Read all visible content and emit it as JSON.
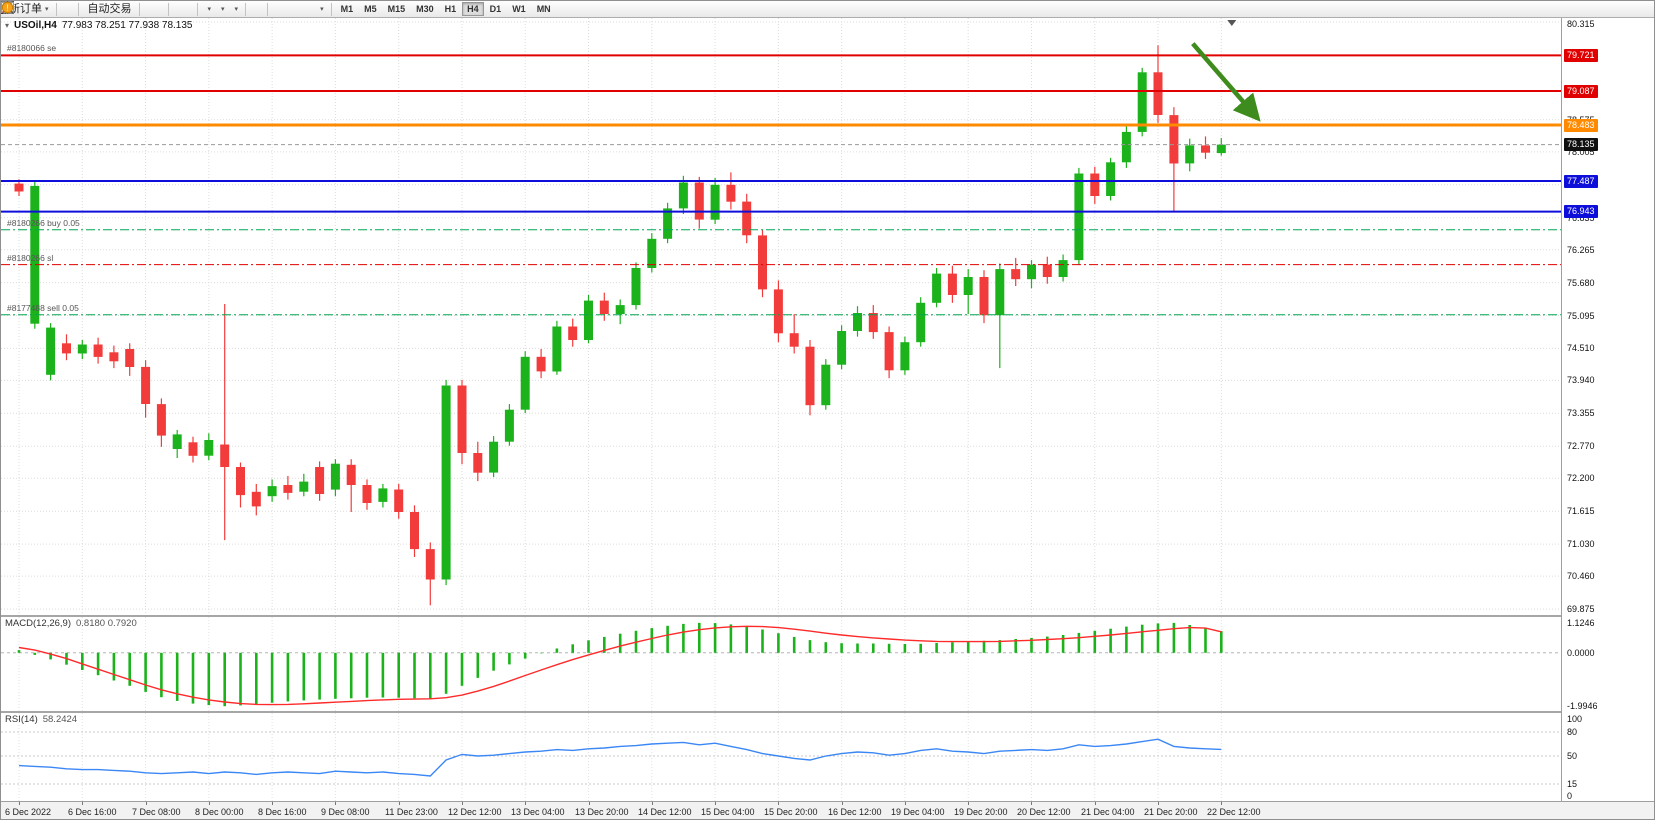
{
  "toolbar": {
    "groups": [
      [
        {
          "name": "new-order-button",
          "icon": "doc-plus",
          "label": "新订单",
          "dd": true
        }
      ],
      [
        {
          "name": "charts-button",
          "icon": "candles-mini"
        },
        {
          "name": "market-watch-button",
          "icon": "grid-blue"
        }
      ],
      [
        {
          "name": "auto-trading-button",
          "icon": "play",
          "label": "自动交易"
        }
      ],
      [
        {
          "name": "chart-bars-button",
          "icon": "bars"
        },
        {
          "name": "chart-candles-button",
          "icon": "candle"
        },
        {
          "name": "chart-line-button",
          "icon": "linechart"
        }
      ],
      [
        {
          "name": "zoom-in-button",
          "icon": "zoom-in"
        },
        {
          "name": "zoom-out-button",
          "icon": "zoom-out"
        },
        {
          "name": "tile-windows-button",
          "icon": "tile"
        }
      ],
      [
        {
          "name": "indicators-button",
          "icon": "plus-green",
          "dd": true
        },
        {
          "name": "periods-button",
          "icon": "clock",
          "dd": true
        },
        {
          "name": "templates-button",
          "icon": "template",
          "dd": true
        }
      ],
      [
        {
          "name": "cursor-button",
          "icon": "cursor"
        },
        {
          "name": "crosshair-button",
          "icon": "crosshair"
        }
      ],
      [
        {
          "name": "horizontal-line-button",
          "icon": "hline"
        },
        {
          "name": "trendline-button",
          "icon": "trendline"
        },
        {
          "name": "channel-button",
          "icon": "channel"
        },
        {
          "name": "fibonacci-button",
          "icon": "fibonacci"
        },
        {
          "name": "text-button",
          "icon": "text-a"
        },
        {
          "name": "label-button",
          "icon": "text-t"
        },
        {
          "name": "arrows-button",
          "icon": "arrow-tool",
          "dd": true
        }
      ]
    ],
    "right": [
      {
        "name": "search-button",
        "icon": "magnifier"
      },
      {
        "name": "alerts-button",
        "icon": "orange-circle"
      }
    ],
    "timeframes": [
      "M1",
      "M5",
      "M15",
      "M30",
      "H1",
      "H4",
      "D1",
      "W1",
      "MN"
    ],
    "active_timeframe": "H4"
  },
  "chart": {
    "symbol_period": "USOil,H4",
    "ohlc_text": "77.983 78.251 77.938 78.135",
    "macd_label": "MACD(12,26,9)",
    "macd_values": "0.8180 0.7920",
    "rsi_label": "RSI(14)",
    "rsi_value": "58.2424"
  },
  "chart_data": [
    {
      "type": "candlestick",
      "title": "USOil,H4",
      "last_ohlc": {
        "open": 77.983,
        "high": 78.251,
        "low": 77.938,
        "close": 78.135
      },
      "ylim": [
        69.875,
        80.315
      ],
      "up_color": "#1cb21c",
      "down_color": "#f23c3c",
      "time_labels": [
        "6 Dec 2022",
        "6 Dec 16:00",
        "7 Dec 08:00",
        "8 Dec 00:00",
        "8 Dec 16:00",
        "9 Dec 08:00",
        "11 Dec 23:00",
        "12 Dec 12:00",
        "13 Dec 04:00",
        "13 Dec 20:00",
        "14 Dec 12:00",
        "15 Dec 04:00",
        "15 Dec 20:00",
        "16 Dec 12:00",
        "19 Dec 04:00",
        "19 Dec 20:00",
        "20 Dec 12:00",
        "21 Dec 04:00",
        "21 Dec 20:00",
        "22 Dec 12:00"
      ],
      "time_label_bar_index": [
        0,
        4,
        8,
        12,
        16,
        20,
        24,
        28,
        32,
        36,
        40,
        44,
        48,
        52,
        56,
        60,
        64,
        68,
        72,
        76
      ],
      "candles": [
        [
          77.44,
          77.52,
          77.22,
          77.3
        ],
        [
          74.95,
          77.48,
          74.86,
          77.4
        ],
        [
          74.04,
          74.96,
          73.94,
          74.88
        ],
        [
          74.6,
          74.76,
          74.3,
          74.42
        ],
        [
          74.42,
          74.66,
          74.32,
          74.58
        ],
        [
          74.58,
          74.7,
          74.24,
          74.36
        ],
        [
          74.44,
          74.56,
          74.16,
          74.28
        ],
        [
          74.5,
          74.6,
          74.02,
          74.18
        ],
        [
          74.18,
          74.3,
          73.28,
          73.52
        ],
        [
          73.52,
          73.62,
          72.76,
          72.96
        ],
        [
          72.72,
          73.06,
          72.56,
          72.98
        ],
        [
          72.84,
          72.94,
          72.48,
          72.6
        ],
        [
          72.6,
          73.0,
          72.52,
          72.88
        ],
        [
          72.8,
          75.3,
          71.1,
          72.4
        ],
        [
          72.4,
          72.48,
          71.68,
          71.9
        ],
        [
          71.96,
          72.1,
          71.54,
          71.7
        ],
        [
          71.88,
          72.18,
          71.78,
          72.06
        ],
        [
          72.08,
          72.24,
          71.82,
          71.94
        ],
        [
          71.96,
          72.28,
          71.88,
          72.14
        ],
        [
          72.4,
          72.5,
          71.8,
          71.92
        ],
        [
          72.0,
          72.54,
          71.88,
          72.46
        ],
        [
          72.44,
          72.54,
          71.6,
          72.08
        ],
        [
          72.08,
          72.18,
          71.64,
          71.76
        ],
        [
          71.78,
          72.1,
          71.68,
          72.02
        ],
        [
          72.0,
          72.1,
          71.48,
          71.6
        ],
        [
          71.6,
          71.72,
          70.8,
          70.94
        ],
        [
          70.94,
          71.06,
          69.94,
          70.4
        ],
        [
          70.4,
          73.95,
          70.3,
          73.85
        ],
        [
          73.85,
          73.95,
          72.45,
          72.65
        ],
        [
          72.65,
          72.85,
          72.15,
          72.3
        ],
        [
          72.3,
          72.95,
          72.22,
          72.85
        ],
        [
          72.85,
          73.52,
          72.78,
          73.42
        ],
        [
          73.42,
          74.46,
          73.36,
          74.36
        ],
        [
          74.36,
          74.5,
          73.98,
          74.1
        ],
        [
          74.1,
          75.0,
          74.04,
          74.9
        ],
        [
          74.9,
          75.04,
          74.54,
          74.66
        ],
        [
          74.66,
          75.46,
          74.6,
          75.36
        ],
        [
          75.36,
          75.5,
          75.0,
          75.12
        ],
        [
          75.12,
          75.38,
          74.94,
          75.28
        ],
        [
          75.28,
          76.04,
          75.2,
          75.94
        ],
        [
          75.94,
          76.56,
          75.86,
          76.46
        ],
        [
          76.46,
          77.1,
          76.38,
          77.0
        ],
        [
          77.0,
          77.58,
          76.9,
          77.46
        ],
        [
          77.46,
          77.56,
          76.64,
          76.8
        ],
        [
          76.8,
          77.54,
          76.72,
          77.42
        ],
        [
          77.42,
          77.64,
          76.98,
          77.12
        ],
        [
          77.12,
          77.26,
          76.38,
          76.52
        ],
        [
          76.52,
          76.62,
          75.42,
          75.56
        ],
        [
          75.56,
          75.72,
          74.62,
          74.78
        ],
        [
          74.78,
          75.12,
          74.42,
          74.54
        ],
        [
          74.54,
          74.66,
          73.32,
          73.5
        ],
        [
          73.5,
          74.32,
          73.42,
          74.22
        ],
        [
          74.22,
          74.92,
          74.14,
          74.82
        ],
        [
          74.82,
          75.26,
          74.72,
          75.14
        ],
        [
          75.14,
          75.28,
          74.68,
          74.8
        ],
        [
          74.8,
          74.9,
          73.98,
          74.12
        ],
        [
          74.12,
          74.72,
          74.04,
          74.62
        ],
        [
          74.62,
          75.42,
          74.54,
          75.32
        ],
        [
          75.32,
          75.94,
          75.24,
          75.84
        ],
        [
          75.84,
          75.98,
          75.32,
          75.46
        ],
        [
          75.46,
          75.92,
          75.12,
          75.78
        ],
        [
          75.78,
          75.9,
          74.96,
          75.1
        ],
        [
          75.1,
          76.02,
          74.16,
          75.92
        ],
        [
          75.92,
          76.12,
          75.62,
          75.74
        ],
        [
          75.74,
          76.08,
          75.58,
          76.0
        ],
        [
          76.0,
          76.14,
          75.66,
          75.78
        ],
        [
          75.78,
          76.18,
          75.7,
          76.08
        ],
        [
          76.08,
          77.72,
          76.0,
          77.62
        ],
        [
          77.62,
          77.74,
          77.08,
          77.22
        ],
        [
          77.22,
          77.9,
          77.14,
          77.82
        ],
        [
          77.82,
          78.46,
          77.72,
          78.36
        ],
        [
          78.36,
          79.5,
          78.28,
          79.42
        ],
        [
          79.42,
          79.9,
          78.52,
          78.66
        ],
        [
          78.66,
          78.8,
          76.94,
          77.8
        ],
        [
          77.8,
          78.24,
          77.66,
          78.12
        ],
        [
          78.12,
          78.28,
          77.88,
          77.99
        ],
        [
          77.983,
          78.251,
          77.938,
          78.135
        ]
      ],
      "price_axis_labels": [
        80.315,
        78.575,
        78.005,
        77.42,
        76.835,
        76.265,
        75.68,
        75.095,
        74.51,
        73.94,
        73.355,
        72.77,
        72.2,
        71.615,
        71.03,
        70.46,
        69.875
      ],
      "price_badges": [
        {
          "label": "79.721",
          "price": 79.721,
          "bg": "#e00000"
        },
        {
          "label": "79.087",
          "price": 79.087,
          "bg": "#e00000"
        },
        {
          "label": "78.483",
          "price": 78.483,
          "bg": "#ff8a00"
        },
        {
          "label": "78.135",
          "price": 78.135,
          "bg": "#101010"
        },
        {
          "label": "77.487",
          "price": 77.487,
          "bg": "#0e0edb"
        },
        {
          "label": "76.943",
          "price": 76.943,
          "bg": "#0e0edb"
        }
      ],
      "level_lines": [
        {
          "price": 79.721,
          "color": "#e00000",
          "width": 2
        },
        {
          "price": 79.087,
          "color": "#e00000",
          "width": 2
        },
        {
          "price": 78.483,
          "color": "#ff8a00",
          "width": 3
        },
        {
          "price": 77.487,
          "color": "#0e0edb",
          "width": 2
        },
        {
          "price": 76.943,
          "color": "#0e0edb",
          "width": 2
        }
      ],
      "order_lines": [
        {
          "price": 76.62,
          "color": "#00a651"
        },
        {
          "price": 76.0,
          "color": "#e00000"
        },
        {
          "price": 75.11,
          "color": "#00a651"
        }
      ],
      "order_labels": [
        {
          "price": 79.721,
          "text": "#8180066 se"
        },
        {
          "price": 76.62,
          "text": "#8180266 buy 0.05"
        },
        {
          "price": 76.0,
          "text": "#8180266 sl"
        },
        {
          "price": 75.11,
          "text": "#8177488 sell 0.05"
        }
      ],
      "last_price": 78.135,
      "annotation_arrow": {
        "from_bar": 74.2,
        "from_price": 79.93,
        "to_bar": 78.3,
        "to_price": 78.6,
        "color": "#3f8c1e"
      }
    },
    {
      "type": "bar",
      "name": "MACD(12,26,9)",
      "values_label": "0.8180 0.7920",
      "ylim": [
        -2.05,
        1.2
      ],
      "hist_color": "#1cb21c",
      "signal_color": "#ff2a2a",
      "axis": [
        {
          "v": 1.1246,
          "t": "1.1246"
        },
        {
          "v": 0,
          "t": "0.0000"
        },
        {
          "v": -1.9946,
          "t": "-1.9946"
        }
      ],
      "histogram": [
        0.1,
        -0.08,
        -0.25,
        -0.45,
        -0.65,
        -0.85,
        -1.05,
        -1.25,
        -1.48,
        -1.68,
        -1.82,
        -1.92,
        -1.98,
        -2.02,
        -1.99,
        -1.94,
        -1.89,
        -1.84,
        -1.8,
        -1.77,
        -1.74,
        -1.72,
        -1.7,
        -1.69,
        -1.7,
        -1.72,
        -1.74,
        -1.55,
        -1.25,
        -0.95,
        -0.68,
        -0.44,
        -0.22,
        -0.02,
        0.16,
        0.32,
        0.47,
        0.6,
        0.72,
        0.83,
        0.93,
        1.02,
        1.09,
        1.13,
        1.12,
        1.07,
        0.99,
        0.88,
        0.74,
        0.6,
        0.48,
        0.4,
        0.36,
        0.35,
        0.35,
        0.34,
        0.33,
        0.34,
        0.37,
        0.4,
        0.43,
        0.45,
        0.48,
        0.52,
        0.56,
        0.61,
        0.67,
        0.75,
        0.83,
        0.91,
        0.99,
        1.06,
        1.11,
        1.13,
        1.05,
        0.93,
        0.818
      ],
      "signal": [
        0.2,
        0.1,
        -0.05,
        -0.22,
        -0.42,
        -0.62,
        -0.82,
        -1.02,
        -1.22,
        -1.4,
        -1.55,
        -1.68,
        -1.78,
        -1.86,
        -1.92,
        -1.95,
        -1.96,
        -1.95,
        -1.93,
        -1.9,
        -1.87,
        -1.84,
        -1.81,
        -1.78,
        -1.76,
        -1.75,
        -1.74,
        -1.7,
        -1.6,
        -1.45,
        -1.27,
        -1.07,
        -0.86,
        -0.65,
        -0.45,
        -0.26,
        -0.08,
        0.09,
        0.25,
        0.4,
        0.54,
        0.67,
        0.78,
        0.87,
        0.94,
        0.98,
        1.0,
        0.99,
        0.95,
        0.89,
        0.82,
        0.74,
        0.67,
        0.61,
        0.56,
        0.52,
        0.48,
        0.45,
        0.43,
        0.42,
        0.42,
        0.42,
        0.43,
        0.45,
        0.47,
        0.5,
        0.53,
        0.57,
        0.62,
        0.67,
        0.73,
        0.79,
        0.85,
        0.91,
        0.95,
        0.93,
        0.792
      ]
    },
    {
      "type": "line",
      "name": "RSI(14)",
      "value_label": "58.2424",
      "ylim": [
        0,
        100
      ],
      "levels": [
        80,
        50,
        15
      ],
      "line_color": "#3b87f5",
      "axis": [
        {
          "v": 100,
          "t": "100"
        },
        {
          "v": 80,
          "t": "80"
        },
        {
          "v": 50,
          "t": "50"
        },
        {
          "v": 15,
          "t": "15"
        },
        {
          "v": 0,
          "t": "0"
        }
      ],
      "values": [
        38,
        37,
        36,
        34,
        33,
        33,
        32,
        31,
        29,
        28,
        29,
        30,
        28,
        30,
        29,
        27,
        29,
        30,
        29,
        28,
        31,
        30,
        29,
        30,
        28,
        27,
        25,
        45,
        52,
        50,
        51,
        53,
        55,
        56,
        58,
        57,
        59,
        60,
        62,
        63,
        65,
        66,
        67,
        64,
        66,
        62,
        58,
        53,
        50,
        47,
        45,
        50,
        53,
        55,
        54,
        51,
        53,
        57,
        59,
        56,
        55,
        53,
        56,
        57,
        58,
        57,
        59,
        64,
        62,
        63,
        65,
        68,
        71,
        62,
        60,
        59,
        58.24
      ]
    }
  ]
}
